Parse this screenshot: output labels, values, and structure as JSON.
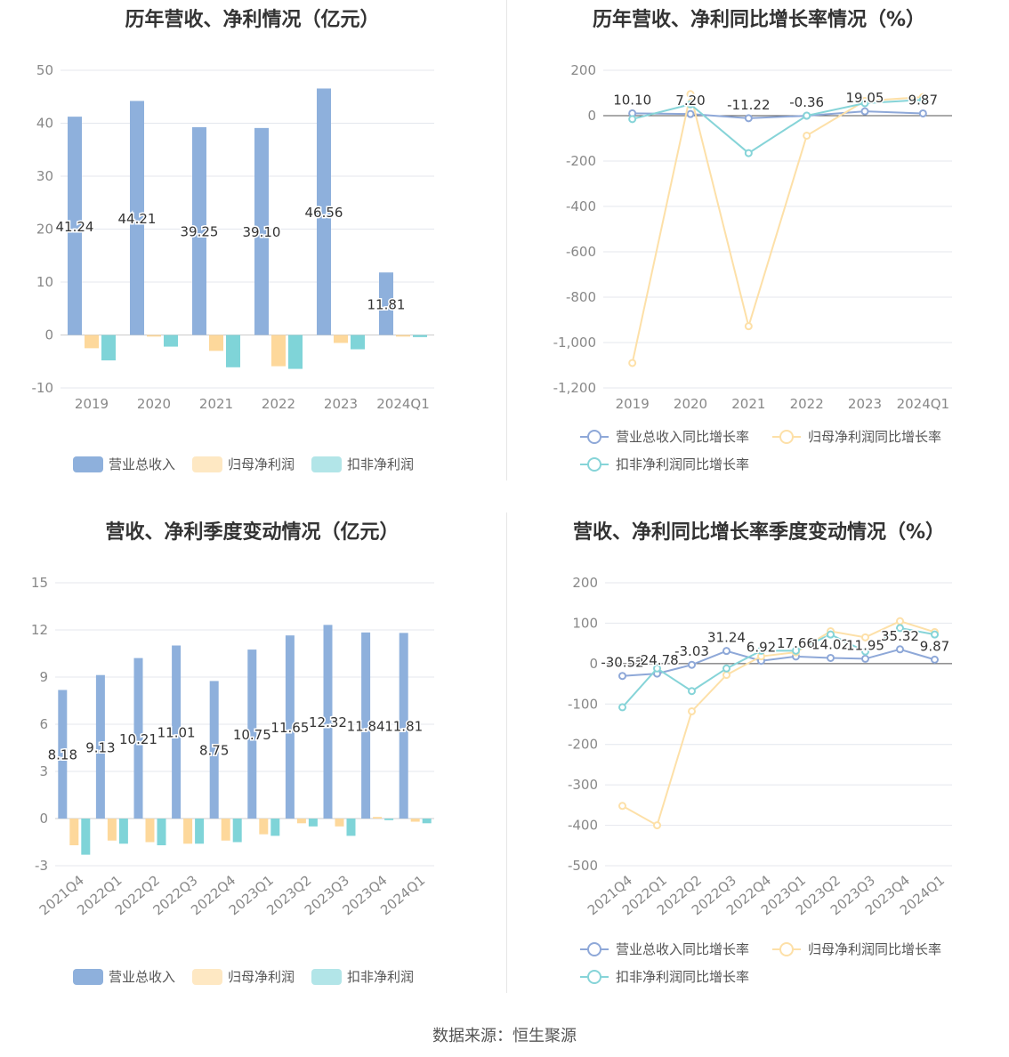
{
  "source": "数据来源：恒生聚源",
  "chart_data": [
    {
      "type": "bar",
      "title": "历年营收、净利情况（亿元）",
      "categories": [
        "2019",
        "2020",
        "2021",
        "2022",
        "2023",
        "2024Q1"
      ],
      "ylim": [
        -10,
        50
      ],
      "yticks": [
        "-10",
        "0",
        "10",
        "20",
        "30",
        "40",
        "50"
      ],
      "series": [
        {
          "name": "营业总收入",
          "color": "#8eb0dc",
          "values": [
            41.24,
            44.21,
            39.25,
            39.1,
            46.56,
            11.81
          ],
          "labels": [
            "41.24",
            "44.21",
            "39.25",
            "39.10",
            "46.56",
            "11.81"
          ]
        },
        {
          "name": "归母净利润",
          "color": "#fdd89b",
          "values": [
            -2.5,
            -0.3,
            -3.0,
            -5.9,
            -1.5,
            -0.3
          ]
        },
        {
          "name": "扣非净利润",
          "color": "#7fd4d8",
          "values": [
            -4.8,
            -2.2,
            -6.1,
            -6.4,
            -2.7,
            -0.4
          ]
        }
      ],
      "legend": "bottom"
    },
    {
      "type": "line",
      "title": "历年营收、净利同比增长率情况（%）",
      "categories": [
        "2019",
        "2020",
        "2021",
        "2022",
        "2023",
        "2024Q1"
      ],
      "ylim": [
        -1200,
        200
      ],
      "yticks": [
        "-1,200",
        "-1,000",
        "-800",
        "-600",
        "-400",
        "-200",
        "0",
        "200"
      ],
      "series": [
        {
          "name": "营业总收入同比增长率",
          "color": "#8ea8d8",
          "values": [
            10.1,
            7.2,
            -11.22,
            -0.36,
            19.05,
            9.87
          ],
          "labels": [
            "10.10",
            "7.20",
            "-11.22",
            "-0.36",
            "19.05",
            "9.87"
          ]
        },
        {
          "name": "归母净利润同比增长率",
          "color": "#fde0a8",
          "values": [
            -1090,
            95,
            -928,
            -88,
            65,
            82
          ]
        },
        {
          "name": "扣非净利润同比增长率",
          "color": "#86d4d8",
          "values": [
            -15,
            50,
            -165,
            0,
            55,
            70
          ]
        }
      ],
      "legend": "bottom"
    },
    {
      "type": "bar",
      "title": "营收、净利季度变动情况（亿元）",
      "categories": [
        "2021Q4",
        "2022Q1",
        "2022Q2",
        "2022Q3",
        "2022Q4",
        "2023Q1",
        "2023Q2",
        "2023Q3",
        "2023Q4",
        "2024Q1"
      ],
      "ylim": [
        -3,
        15
      ],
      "yticks": [
        "-3",
        "0",
        "3",
        "6",
        "9",
        "12",
        "15"
      ],
      "series": [
        {
          "name": "营业总收入",
          "color": "#8eb0dc",
          "values": [
            8.18,
            9.13,
            10.21,
            11.01,
            8.75,
            10.75,
            11.65,
            12.32,
            11.84,
            11.81
          ],
          "labels": [
            "8.18",
            "9.13",
            "10.21",
            "11.01",
            "8.75",
            "10.75",
            "11.65",
            "12.32",
            "11.84",
            "11.81"
          ]
        },
        {
          "name": "归母净利润",
          "color": "#fdd89b",
          "values": [
            -1.7,
            -1.4,
            -1.5,
            -1.6,
            -1.4,
            -1.0,
            -0.3,
            -0.5,
            0.1,
            -0.2
          ]
        },
        {
          "name": "扣非净利润",
          "color": "#7fd4d8",
          "values": [
            -2.3,
            -1.6,
            -1.7,
            -1.6,
            -1.5,
            -1.1,
            -0.5,
            -1.1,
            -0.1,
            -0.3
          ]
        }
      ],
      "legend": "bottom"
    },
    {
      "type": "line",
      "title": "营收、净利同比增长率季度变动情况（%）",
      "categories": [
        "2021Q4",
        "2022Q1",
        "2022Q2",
        "2022Q3",
        "2022Q4",
        "2023Q1",
        "2023Q2",
        "2023Q3",
        "2023Q4",
        "2024Q1"
      ],
      "ylim": [
        -500,
        200
      ],
      "yticks": [
        "-500",
        "-400",
        "-300",
        "-200",
        "-100",
        "0",
        "100",
        "200"
      ],
      "series": [
        {
          "name": "营业总收入同比增长率",
          "color": "#8ea8d8",
          "values": [
            -30.52,
            -24.78,
            -3.03,
            31.24,
            6.92,
            17.66,
            14.02,
            11.95,
            35.32,
            9.87
          ],
          "labels": [
            "-30.52",
            "-24.78",
            "-3.03",
            "31.24",
            "6.92",
            "17.66",
            "14.02",
            "11.95",
            "35.32",
            "9.87"
          ]
        },
        {
          "name": "归母净利润同比增长率",
          "color": "#fde0a8",
          "values": [
            -352,
            -400,
            -118,
            -28,
            18,
            28,
            80,
            65,
            105,
            78
          ]
        },
        {
          "name": "扣非净利润同比增长率",
          "color": "#86d4d8",
          "values": [
            -108,
            -12,
            -68,
            -12,
            32,
            32,
            72,
            30,
            88,
            72
          ]
        }
      ],
      "legend": "bottom"
    }
  ]
}
